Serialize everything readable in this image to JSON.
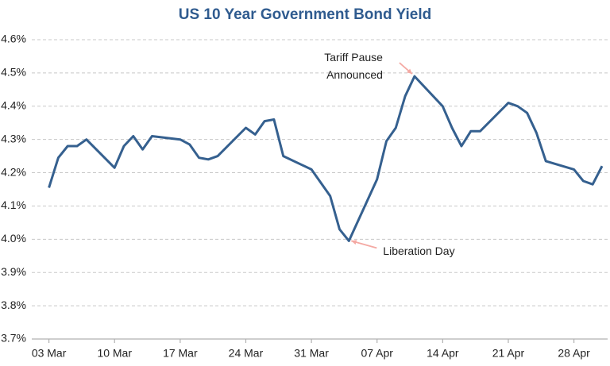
{
  "chart_data": {
    "type": "line",
    "title": "US 10 Year Government Bond Yield",
    "x": [
      "03 Mar",
      "04 Mar",
      "05 Mar",
      "06 Mar",
      "07 Mar",
      "10 Mar",
      "11 Mar",
      "12 Mar",
      "13 Mar",
      "14 Mar",
      "17 Mar",
      "18 Mar",
      "19 Mar",
      "20 Mar",
      "21 Mar",
      "24 Mar",
      "25 Mar",
      "26 Mar",
      "27 Mar",
      "28 Mar",
      "31 Mar",
      "01 Apr",
      "02 Apr",
      "03 Apr",
      "04 Apr",
      "07 Apr",
      "08 Apr",
      "09 Apr",
      "10 Apr",
      "11 Apr",
      "14 Apr",
      "15 Apr",
      "16 Apr",
      "17 Apr",
      "18 Apr",
      "21 Apr",
      "22 Apr",
      "23 Apr",
      "24 Apr",
      "25 Apr",
      "28 Apr",
      "29 Apr",
      "30 Apr",
      "01 May"
    ],
    "values": [
      4.155,
      4.245,
      4.28,
      4.28,
      4.3,
      4.215,
      4.28,
      4.31,
      4.27,
      4.31,
      4.3,
      4.285,
      4.245,
      4.24,
      4.25,
      4.335,
      4.315,
      4.355,
      4.36,
      4.25,
      4.21,
      4.17,
      4.13,
      4.03,
      3.995,
      4.18,
      4.295,
      4.335,
      4.43,
      4.49,
      4.4,
      4.335,
      4.28,
      4.325,
      4.325,
      4.41,
      4.4,
      4.38,
      4.32,
      4.235,
      4.21,
      4.175,
      4.165,
      4.22
    ],
    "color": "#35608f",
    "xlim": [
      "01 Mar",
      "01 May"
    ],
    "xticks": [
      "03 Mar",
      "10 Mar",
      "17 Mar",
      "24 Mar",
      "31 Mar",
      "07 Apr",
      "14 Apr",
      "21 Apr",
      "28 Apr"
    ],
    "ylim": [
      3.7,
      4.6
    ],
    "yticks": [
      {
        "value": 3.7,
        "label": "3.7%"
      },
      {
        "value": 3.8,
        "label": "3.8%"
      },
      {
        "value": 3.9,
        "label": "3.9%"
      },
      {
        "value": 4.0,
        "label": "4.0%"
      },
      {
        "value": 4.1,
        "label": "4.1%"
      },
      {
        "value": 4.2,
        "label": "4.2%"
      },
      {
        "value": 4.3,
        "label": "4.3%"
      },
      {
        "value": 4.4,
        "label": "4.4%"
      },
      {
        "value": 4.5,
        "label": "4.5%"
      },
      {
        "value": 4.6,
        "label": "4.6%"
      }
    ],
    "grid": true,
    "annotations": [
      {
        "lines": [
          "Tariff Pause",
          "Announced"
        ],
        "x": "11 Apr",
        "y": 4.49,
        "color": "#f4a9a3"
      },
      {
        "lines": [
          "Liberation Day"
        ],
        "x": "04 Apr",
        "y": 3.995,
        "color": "#f4a9a3"
      }
    ]
  }
}
